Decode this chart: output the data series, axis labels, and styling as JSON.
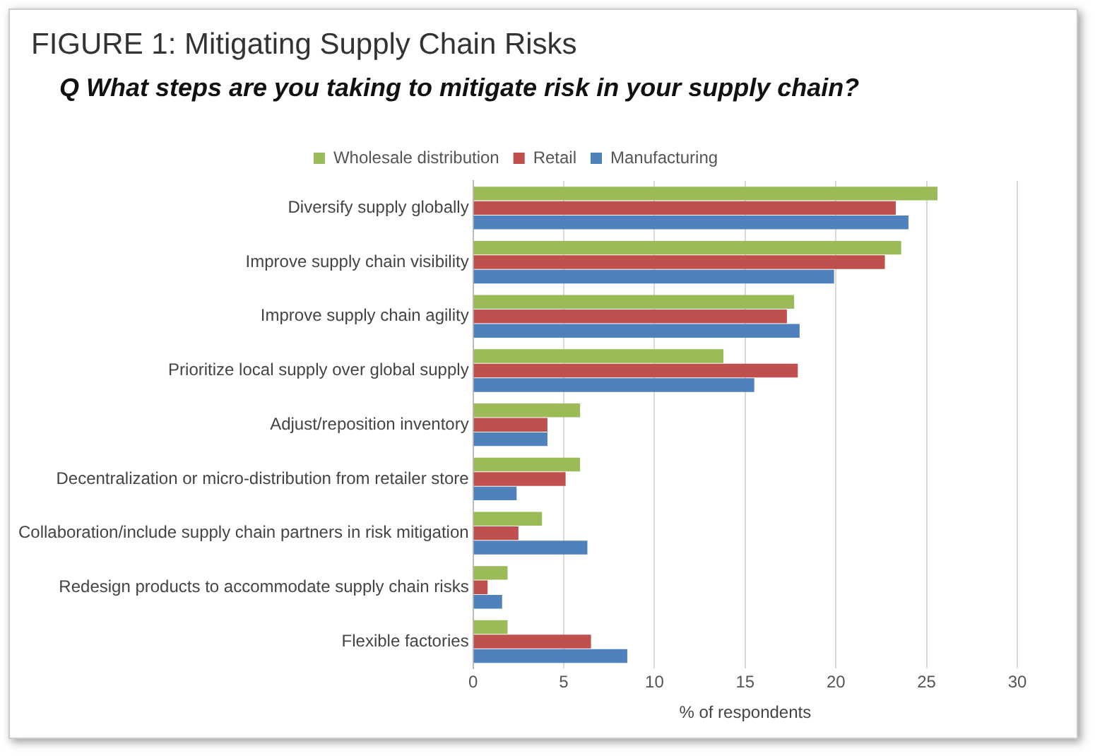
{
  "chart_data": {
    "type": "bar",
    "orientation": "horizontal",
    "title": "FIGURE 1: Mitigating Supply Chain Risks",
    "subtitle": "Q What steps are you taking to mitigate risk in your supply chain?",
    "xlabel": "% of respondents",
    "categories": [
      "Diversify supply globally",
      "Improve supply chain visibility",
      "Improve supply chain agility",
      "Prioritize local supply over global supply",
      "Adjust/reposition inventory",
      "Decentralization or micro-distribution from retailer store",
      "Collaboration/include supply chain partners in risk mitigation",
      "Redesign products to accommodate supply chain risks",
      "Flexible factories"
    ],
    "series": [
      {
        "name": "Wholesale distribution",
        "color": "#9bbb59",
        "values": [
          25.6,
          23.6,
          17.7,
          13.8,
          5.9,
          5.9,
          3.8,
          1.9,
          1.9
        ]
      },
      {
        "name": "Retail",
        "color": "#c0504d",
        "values": [
          23.3,
          22.7,
          17.3,
          17.9,
          4.1,
          5.1,
          2.5,
          0.8,
          6.5
        ]
      },
      {
        "name": "Manufacturing",
        "color": "#4f81bd",
        "values": [
          24.0,
          19.9,
          18.0,
          15.5,
          4.1,
          2.4,
          6.3,
          1.6,
          8.5
        ]
      }
    ],
    "xlim": [
      0,
      30
    ],
    "xticks": [
      0,
      5,
      10,
      15,
      20,
      25,
      30
    ],
    "grid": "x",
    "legend": "top"
  }
}
